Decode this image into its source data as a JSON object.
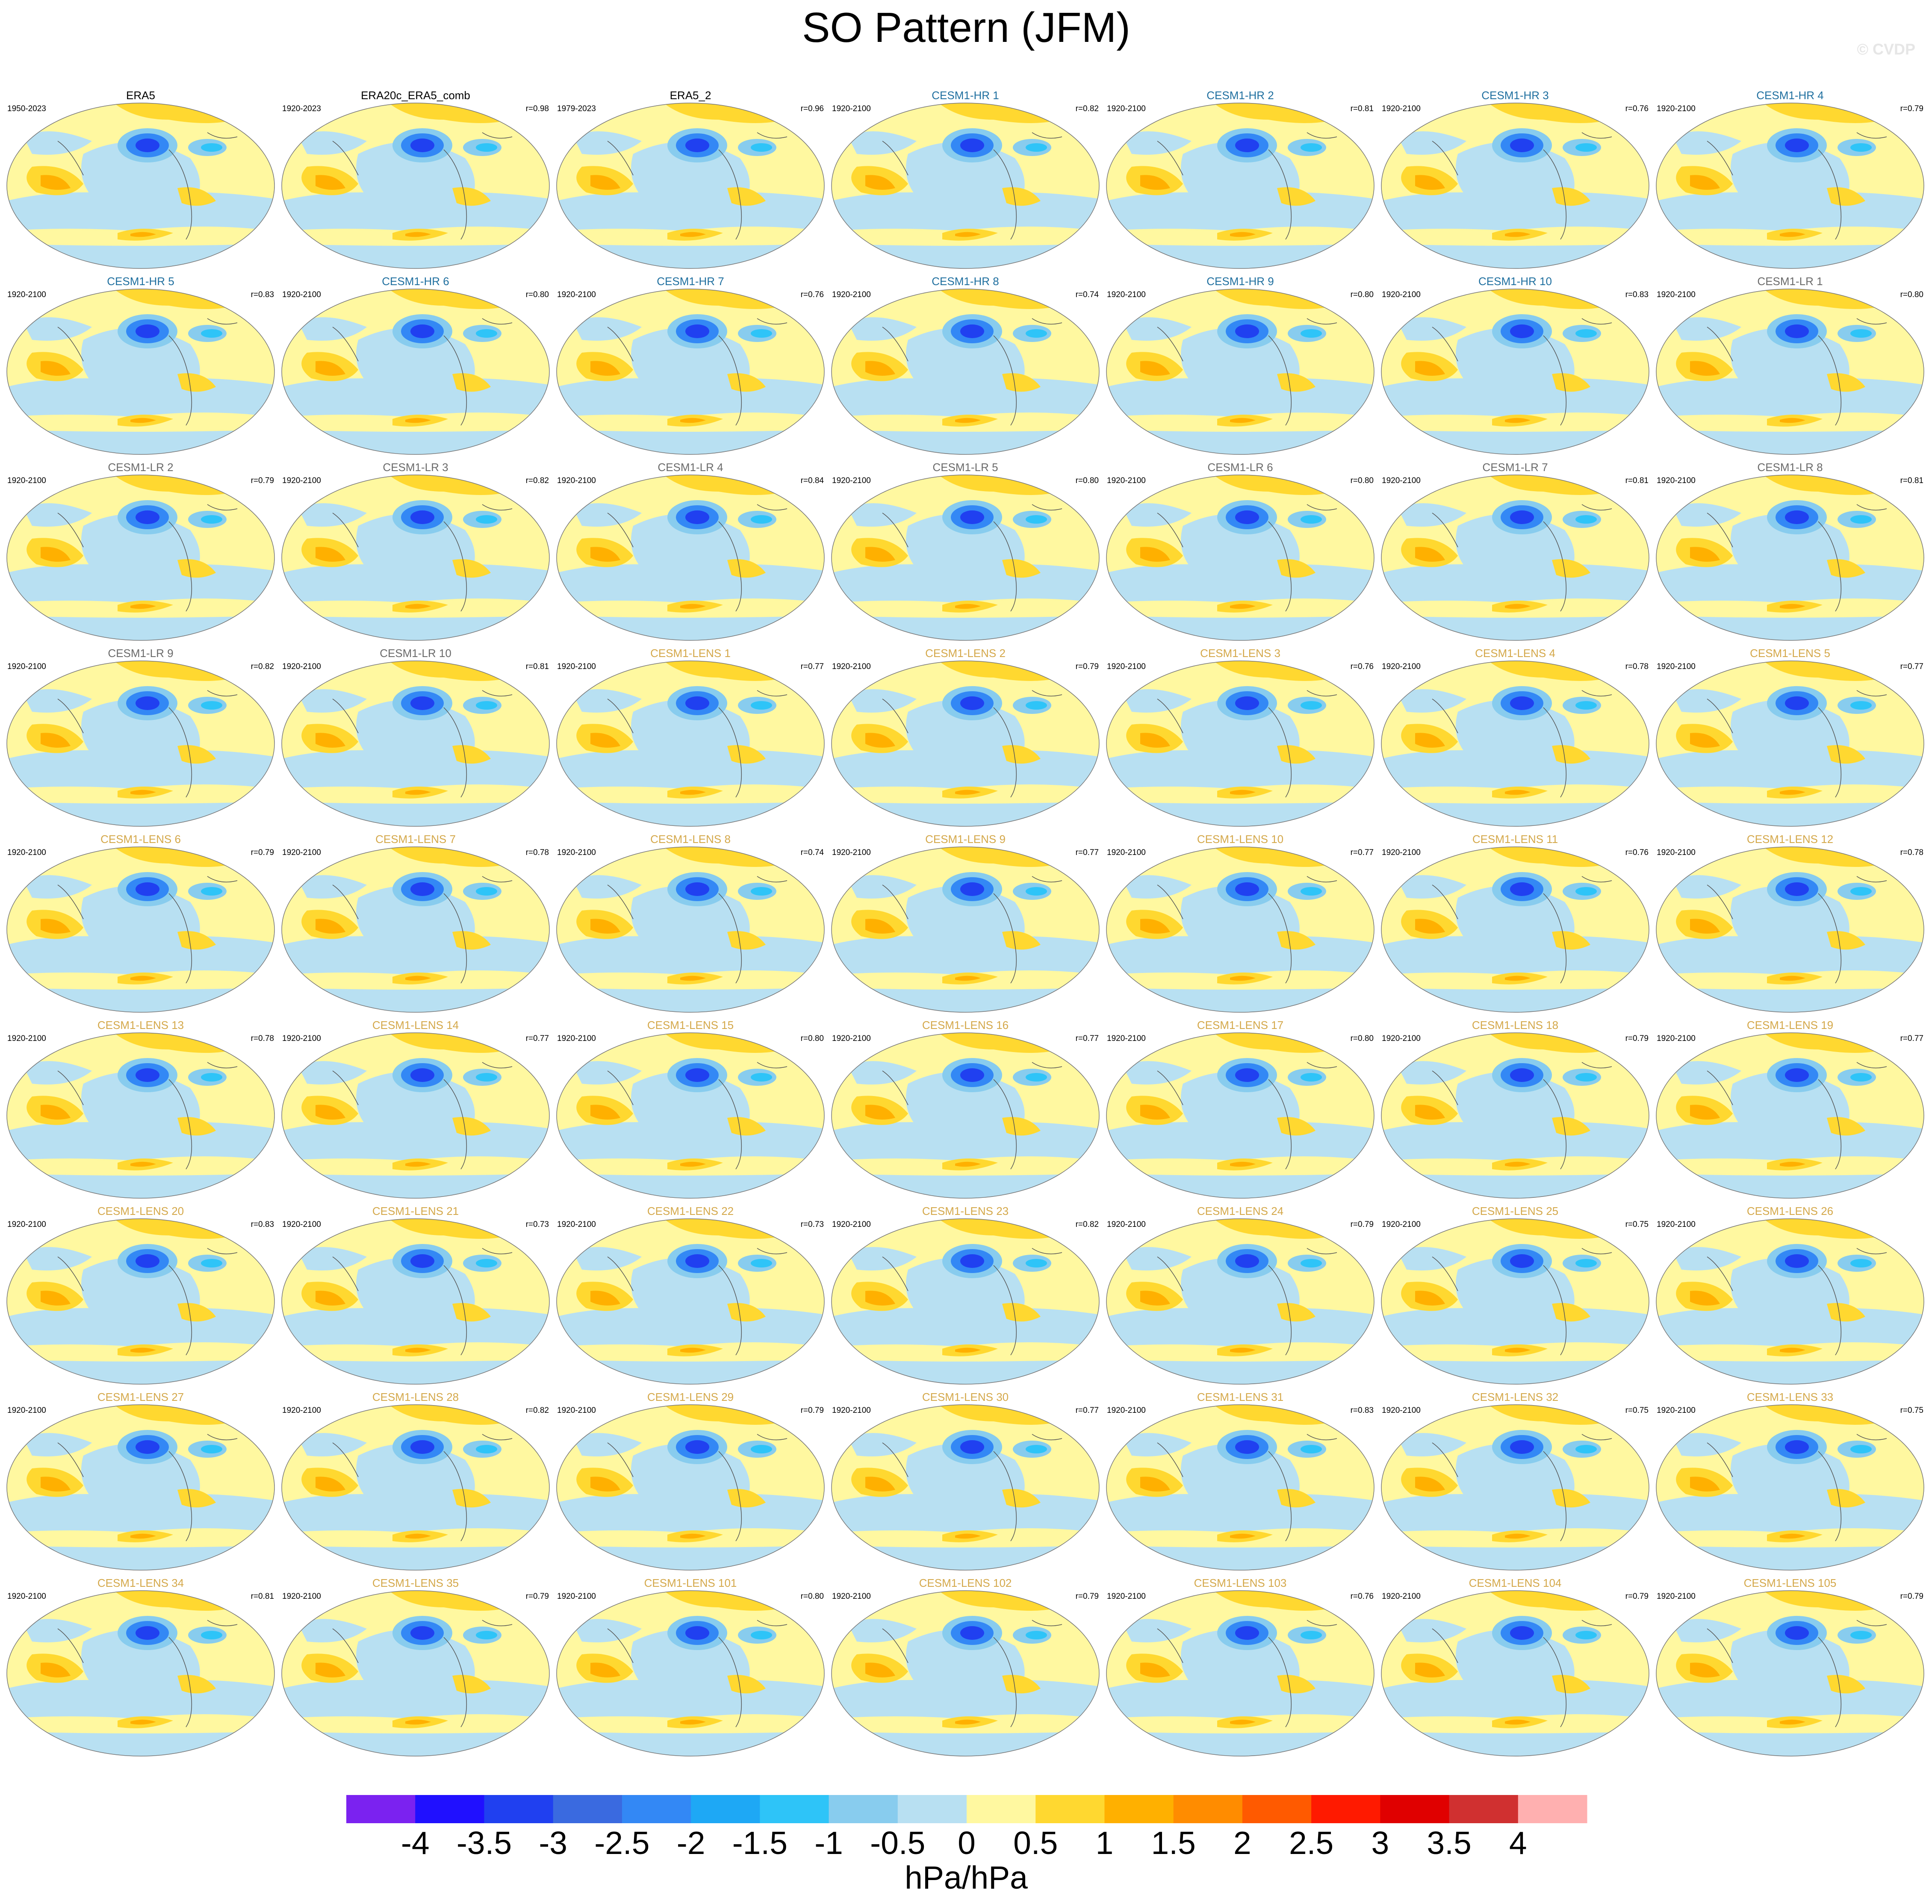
{
  "chart_data": {
    "type": "map-grid",
    "title": "SO Pattern (JFM)",
    "watermark": "© CVDP",
    "panels": [
      {
        "title": "ERA5",
        "period": "1950-2023",
        "color": "#000000"
      },
      {
        "title": "ERA20c_ERA5_comb",
        "period": "1920-2023",
        "r": "r=0.98",
        "color": "#000000"
      },
      {
        "title": "ERA5_2",
        "period": "1979-2023",
        "r": "r=0.96",
        "color": "#000000"
      },
      {
        "title": "CESM1-HR 1",
        "period": "1920-2100",
        "r": "r=0.82",
        "color": "#1f6f9f"
      },
      {
        "title": "CESM1-HR 2",
        "period": "1920-2100",
        "r": "r=0.81",
        "color": "#1f6f9f"
      },
      {
        "title": "CESM1-HR 3",
        "period": "1920-2100",
        "r": "r=0.76",
        "color": "#1f6f9f"
      },
      {
        "title": "CESM1-HR 4",
        "period": "1920-2100",
        "r": "r=0.79",
        "color": "#1f6f9f"
      },
      {
        "title": "CESM1-HR 5",
        "period": "1920-2100",
        "r": "r=0.83",
        "color": "#1f6f9f"
      },
      {
        "title": "CESM1-HR 6",
        "period": "1920-2100",
        "r": "r=0.80",
        "color": "#1f6f9f"
      },
      {
        "title": "CESM1-HR 7",
        "period": "1920-2100",
        "r": "r=0.76",
        "color": "#1f6f9f"
      },
      {
        "title": "CESM1-HR 8",
        "period": "1920-2100",
        "r": "r=0.74",
        "color": "#1f6f9f"
      },
      {
        "title": "CESM1-HR 9",
        "period": "1920-2100",
        "r": "r=0.80",
        "color": "#1f6f9f"
      },
      {
        "title": "CESM1-HR 10",
        "period": "1920-2100",
        "r": "r=0.83",
        "color": "#1f6f9f"
      },
      {
        "title": "CESM1-LR 1",
        "period": "1920-2100",
        "r": "r=0.80",
        "color": "#6a6a6a"
      },
      {
        "title": "CESM1-LR 2",
        "period": "1920-2100",
        "r": "r=0.79",
        "color": "#6a6a6a"
      },
      {
        "title": "CESM1-LR 3",
        "period": "1920-2100",
        "r": "r=0.82",
        "color": "#6a6a6a"
      },
      {
        "title": "CESM1-LR 4",
        "period": "1920-2100",
        "r": "r=0.84",
        "color": "#6a6a6a"
      },
      {
        "title": "CESM1-LR 5",
        "period": "1920-2100",
        "r": "r=0.80",
        "color": "#6a6a6a"
      },
      {
        "title": "CESM1-LR 6",
        "period": "1920-2100",
        "r": "r=0.80",
        "color": "#6a6a6a"
      },
      {
        "title": "CESM1-LR 7",
        "period": "1920-2100",
        "r": "r=0.81",
        "color": "#6a6a6a"
      },
      {
        "title": "CESM1-LR 8",
        "period": "1920-2100",
        "r": "r=0.81",
        "color": "#6a6a6a"
      },
      {
        "title": "CESM1-LR 9",
        "period": "1920-2100",
        "r": "r=0.82",
        "color": "#6a6a6a"
      },
      {
        "title": "CESM1-LR 10",
        "period": "1920-2100",
        "r": "r=0.81",
        "color": "#6a6a6a"
      },
      {
        "title": "CESM1-LENS 1",
        "period": "1920-2100",
        "r": "r=0.77",
        "color": "#d4a84a"
      },
      {
        "title": "CESM1-LENS 2",
        "period": "1920-2100",
        "r": "r=0.79",
        "color": "#d4a84a"
      },
      {
        "title": "CESM1-LENS 3",
        "period": "1920-2100",
        "r": "r=0.76",
        "color": "#d4a84a"
      },
      {
        "title": "CESM1-LENS 4",
        "period": "1920-2100",
        "r": "r=0.78",
        "color": "#d4a84a"
      },
      {
        "title": "CESM1-LENS 5",
        "period": "1920-2100",
        "r": "r=0.77",
        "color": "#d4a84a"
      },
      {
        "title": "CESM1-LENS 6",
        "period": "1920-2100",
        "r": "r=0.79",
        "color": "#d4a84a"
      },
      {
        "title": "CESM1-LENS 7",
        "period": "1920-2100",
        "r": "r=0.78",
        "color": "#d4a84a"
      },
      {
        "title": "CESM1-LENS 8",
        "period": "1920-2100",
        "r": "r=0.74",
        "color": "#d4a84a"
      },
      {
        "title": "CESM1-LENS 9",
        "period": "1920-2100",
        "r": "r=0.77",
        "color": "#d4a84a"
      },
      {
        "title": "CESM1-LENS 10",
        "period": "1920-2100",
        "r": "r=0.77",
        "color": "#d4a84a"
      },
      {
        "title": "CESM1-LENS 11",
        "period": "1920-2100",
        "r": "r=0.76",
        "color": "#d4a84a"
      },
      {
        "title": "CESM1-LENS 12",
        "period": "1920-2100",
        "r": "r=0.78",
        "color": "#d4a84a"
      },
      {
        "title": "CESM1-LENS 13",
        "period": "1920-2100",
        "r": "r=0.78",
        "color": "#d4a84a"
      },
      {
        "title": "CESM1-LENS 14",
        "period": "1920-2100",
        "r": "r=0.77",
        "color": "#d4a84a"
      },
      {
        "title": "CESM1-LENS 15",
        "period": "1920-2100",
        "r": "r=0.80",
        "color": "#d4a84a"
      },
      {
        "title": "CESM1-LENS 16",
        "period": "1920-2100",
        "r": "r=0.77",
        "color": "#d4a84a"
      },
      {
        "title": "CESM1-LENS 17",
        "period": "1920-2100",
        "r": "r=0.80",
        "color": "#d4a84a"
      },
      {
        "title": "CESM1-LENS 18",
        "period": "1920-2100",
        "r": "r=0.79",
        "color": "#d4a84a"
      },
      {
        "title": "CESM1-LENS 19",
        "period": "1920-2100",
        "r": "r=0.77",
        "color": "#d4a84a"
      },
      {
        "title": "CESM1-LENS 20",
        "period": "1920-2100",
        "r": "r=0.83",
        "color": "#d4a84a"
      },
      {
        "title": "CESM1-LENS 21",
        "period": "1920-2100",
        "r": "r=0.73",
        "color": "#d4a84a"
      },
      {
        "title": "CESM1-LENS 22",
        "period": "1920-2100",
        "r": "r=0.73",
        "color": "#d4a84a"
      },
      {
        "title": "CESM1-LENS 23",
        "period": "1920-2100",
        "r": "r=0.82",
        "color": "#d4a84a"
      },
      {
        "title": "CESM1-LENS 24",
        "period": "1920-2100",
        "r": "r=0.79",
        "color": "#d4a84a"
      },
      {
        "title": "CESM1-LENS 25",
        "period": "1920-2100",
        "r": "r=0.75",
        "color": "#d4a84a"
      },
      {
        "title": "CESM1-LENS 26",
        "period": "1920-2100",
        "color": "#d4a84a"
      },
      {
        "title": "CESM1-LENS 27",
        "period": "1920-2100",
        "color": "#d4a84a"
      },
      {
        "title": "CESM1-LENS 28",
        "period": "1920-2100",
        "r": "r=0.82",
        "color": "#d4a84a"
      },
      {
        "title": "CESM1-LENS 29",
        "period": "1920-2100",
        "r": "r=0.79",
        "color": "#d4a84a"
      },
      {
        "title": "CESM1-LENS 30",
        "period": "1920-2100",
        "r": "r=0.77",
        "color": "#d4a84a"
      },
      {
        "title": "CESM1-LENS 31",
        "period": "1920-2100",
        "r": "r=0.83",
        "color": "#d4a84a"
      },
      {
        "title": "CESM1-LENS 32",
        "period": "1920-2100",
        "r": "r=0.75",
        "color": "#d4a84a"
      },
      {
        "title": "CESM1-LENS 33",
        "period": "1920-2100",
        "r": "r=0.75",
        "color": "#d4a84a"
      },
      {
        "title": "CESM1-LENS 34",
        "period": "1920-2100",
        "r": "r=0.81",
        "color": "#d4a84a"
      },
      {
        "title": "CESM1-LENS 35",
        "period": "1920-2100",
        "r": "r=0.79",
        "color": "#d4a84a"
      },
      {
        "title": "CESM1-LENS 101",
        "period": "1920-2100",
        "r": "r=0.80",
        "color": "#d4a84a"
      },
      {
        "title": "CESM1-LENS 102",
        "period": "1920-2100",
        "r": "r=0.79",
        "color": "#d4a84a"
      },
      {
        "title": "CESM1-LENS 103",
        "period": "1920-2100",
        "r": "r=0.76",
        "color": "#d4a84a"
      },
      {
        "title": "CESM1-LENS 104",
        "period": "1920-2100",
        "r": "r=0.79",
        "color": "#d4a84a"
      },
      {
        "title": "CESM1-LENS 105",
        "period": "1920-2100",
        "r": "r=0.79",
        "color": "#d4a84a"
      }
    ],
    "colorbar": {
      "label": "hPa/hPa",
      "ticks": [
        -4,
        -3.5,
        -3,
        -2.5,
        -2,
        -1.5,
        -1,
        -0.5,
        0,
        0.5,
        1,
        1.5,
        2,
        2.5,
        3,
        3.5,
        4
      ],
      "colors": [
        "#7b22f0",
        "#2010ff",
        "#2040f0",
        "#3a6ae0",
        "#3388f5",
        "#1ea8f5",
        "#2ec4f8",
        "#88ccee",
        "#b8e0f2",
        "#fff8a0",
        "#ffd830",
        "#ffb000",
        "#ff8c00",
        "#ff5a00",
        "#ff1a00",
        "#e00000",
        "#d03030",
        "#ffb0b0"
      ]
    }
  }
}
